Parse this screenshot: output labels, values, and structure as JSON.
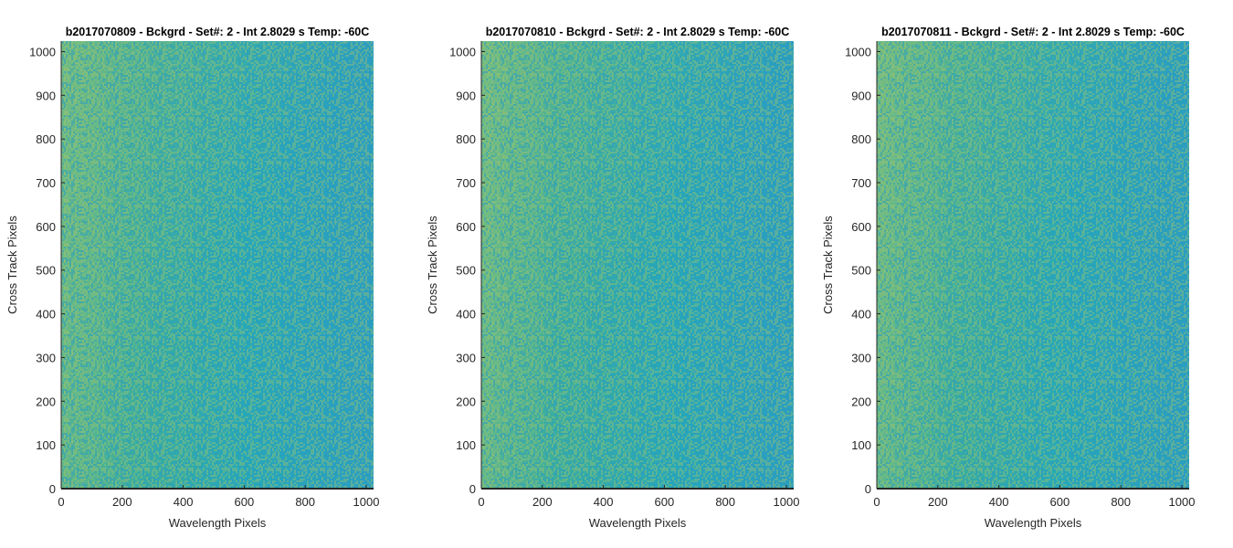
{
  "figure": {
    "colormap": [
      "#2b9ec0",
      "#26a8b8",
      "#3aad9f",
      "#62b88a",
      "#8fc275",
      "#b8c762"
    ],
    "axis_color": "#262626",
    "text_color": "#262626",
    "title_color": "#000000"
  },
  "chart_data": [
    {
      "type": "heatmap",
      "title": "b2017070809 - Bckgrd - Set#: 2 - Int 2.8029 s Temp: -60C",
      "xlabel": "Wavelength Pixels",
      "ylabel": "Cross Track Pixels",
      "xlim": [
        0,
        1024
      ],
      "ylim": [
        0,
        1024
      ],
      "xticks": [
        0,
        200,
        400,
        600,
        800,
        1000
      ],
      "yticks": [
        0,
        100,
        200,
        300,
        400,
        500,
        600,
        700,
        800,
        900,
        1000
      ],
      "grid": false,
      "value_trend": "higher (yellow-green) at low wavelength pixels, lower (teal-blue) at high wavelength pixels"
    },
    {
      "type": "heatmap",
      "title": "b2017070810 - Bckgrd - Set#: 2 - Int 2.8029 s Temp: -60C",
      "xlabel": "Wavelength Pixels",
      "ylabel": "Cross Track Pixels",
      "xlim": [
        0,
        1024
      ],
      "ylim": [
        0,
        1024
      ],
      "xticks": [
        0,
        200,
        400,
        600,
        800,
        1000
      ],
      "yticks": [
        0,
        100,
        200,
        300,
        400,
        500,
        600,
        700,
        800,
        900,
        1000
      ],
      "grid": false,
      "value_trend": "higher (yellow-green) at low wavelength pixels, lower (teal-blue) at high wavelength pixels"
    },
    {
      "type": "heatmap",
      "title": "b2017070811 - Bckgrd - Set#: 2 - Int 2.8029 s Temp: -60C",
      "xlabel": "Wavelength Pixels",
      "ylabel": "Cross Track Pixels",
      "xlim": [
        0,
        1024
      ],
      "ylim": [
        0,
        1024
      ],
      "xticks": [
        0,
        200,
        400,
        600,
        800,
        1000
      ],
      "yticks": [
        0,
        100,
        200,
        300,
        400,
        500,
        600,
        700,
        800,
        900,
        1000
      ],
      "grid": false,
      "value_trend": "higher (yellow-green) at low wavelength pixels, lower (teal-blue) at high wavelength pixels"
    }
  ]
}
